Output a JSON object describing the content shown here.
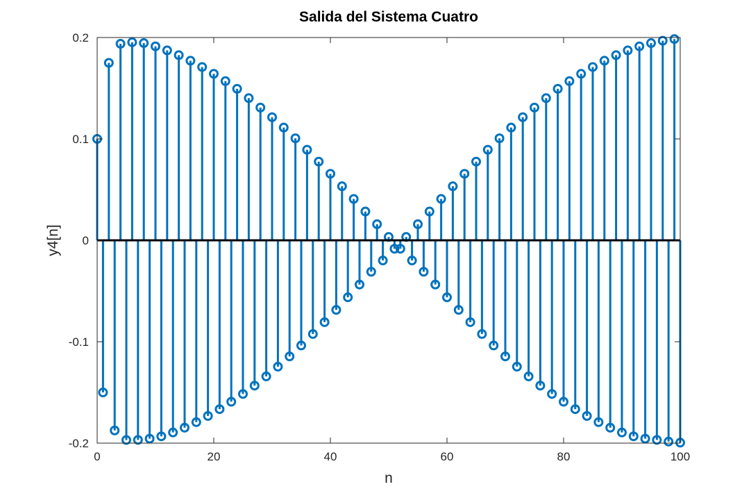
{
  "chart_data": {
    "type": "stem",
    "title": "Salida del Sistema Cuatro",
    "xlabel": "n",
    "ylabel": "y4[n]",
    "xlim": [
      0,
      100
    ],
    "ylim": [
      -0.2,
      0.2
    ],
    "xticks": [
      "0",
      "20",
      "40",
      "60",
      "80",
      "100"
    ],
    "yticks": [
      "-0.2",
      "-0.1",
      "0",
      "0.1",
      "0.2"
    ],
    "grid": false,
    "legend": "none",
    "series_color": "#0072BD",
    "baseline_color": "#000000",
    "x": [
      0,
      1,
      2,
      3,
      4,
      5,
      6,
      7,
      8,
      9,
      10,
      11,
      12,
      13,
      14,
      15,
      16,
      17,
      18,
      19,
      20,
      21,
      22,
      23,
      24,
      25,
      26,
      27,
      28,
      29,
      30,
      31,
      32,
      33,
      34,
      35,
      36,
      37,
      38,
      39,
      40,
      41,
      42,
      43,
      44,
      45,
      46,
      47,
      48,
      49,
      50,
      51,
      52,
      53,
      54,
      55,
      56,
      57,
      58,
      59,
      60,
      61,
      62,
      63,
      64,
      65,
      66,
      67,
      68,
      69,
      70,
      71,
      72,
      73,
      74,
      75,
      76,
      77,
      78,
      79,
      80,
      81,
      82,
      83,
      84,
      85,
      86,
      87,
      88,
      89,
      90,
      91,
      92,
      93,
      94,
      95,
      96,
      97,
      98,
      99,
      100
    ],
    "y": [
      0.1,
      -0.15,
      0.175,
      -0.1875,
      0.1938,
      -0.1969,
      0.1953,
      -0.1968,
      0.1945,
      -0.1956,
      0.1913,
      -0.1933,
      0.1873,
      -0.1895,
      0.1826,
      -0.1848,
      0.1771,
      -0.1793,
      0.1709,
      -0.1732,
      0.1642,
      -0.1665,
      0.157,
      -0.1592,
      0.1494,
      -0.1515,
      0.1402,
      -0.1433,
      0.1309,
      -0.1342,
      0.1214,
      -0.1246,
      0.1112,
      -0.1145,
      0.1006,
      -0.1037,
      0.0893,
      -0.0924,
      0.0776,
      -0.0807,
      0.0656,
      -0.0686,
      0.0533,
      -0.0562,
      0.0408,
      -0.0436,
      0.0284,
      -0.031,
      0.0159,
      -0.0199,
      0.0033,
      -0.0083,
      -0.0083,
      0.0033,
      -0.0199,
      0.0159,
      -0.031,
      0.0284,
      -0.0436,
      0.0408,
      -0.0562,
      0.0533,
      -0.0686,
      0.0656,
      -0.0807,
      0.0776,
      -0.0924,
      0.0893,
      -0.1037,
      0.1006,
      -0.1145,
      0.1112,
      -0.1246,
      0.1214,
      -0.1342,
      0.1309,
      -0.1433,
      0.1402,
      -0.1515,
      0.1494,
      -0.1592,
      0.157,
      -0.1665,
      0.1642,
      -0.1732,
      0.1709,
      -0.1793,
      0.1771,
      -0.1848,
      0.1826,
      -0.1895,
      0.1873,
      -0.1933,
      0.1913,
      -0.1956,
      0.1945,
      -0.1968,
      0.1968,
      -0.1985,
      0.1985,
      -0.1995
    ]
  }
}
